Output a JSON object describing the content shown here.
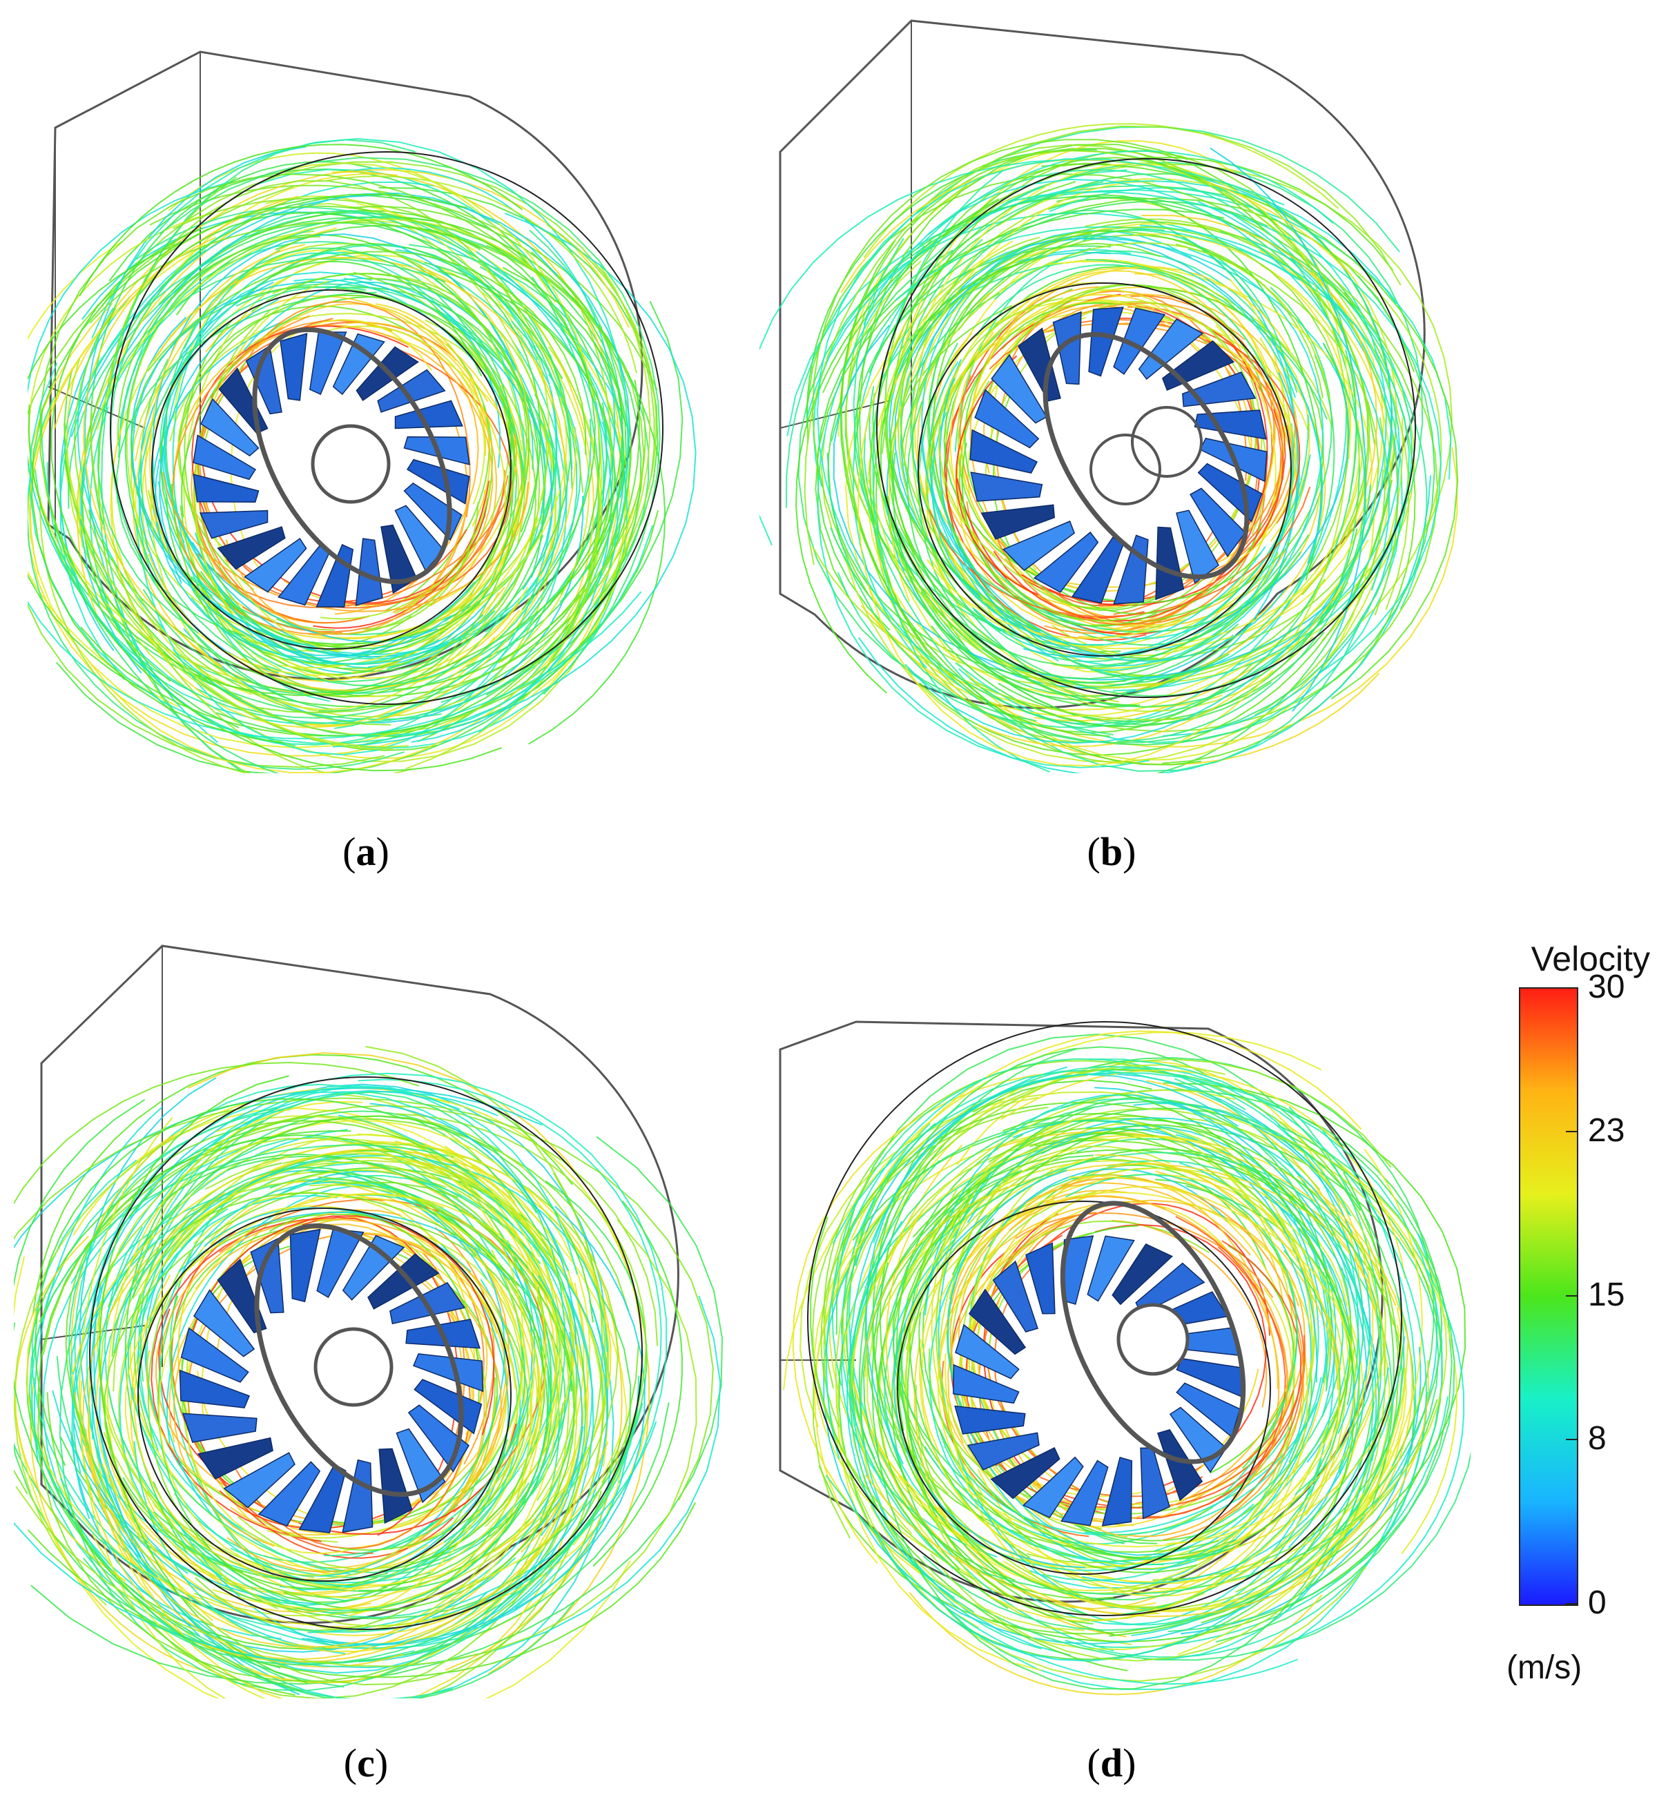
{
  "panels": [
    {
      "id": "a",
      "caption": "a"
    },
    {
      "id": "b",
      "caption": "b"
    },
    {
      "id": "c",
      "caption": "c"
    },
    {
      "id": "d",
      "caption": "d"
    }
  ],
  "legend": {
    "title": "Velocity",
    "unit": "(m/s)",
    "ticks": [
      "30",
      "23",
      "15",
      "8",
      "0"
    ],
    "tick_values": [
      30,
      23,
      15,
      8,
      0
    ],
    "range": [
      0,
      30
    ],
    "colormap": [
      "#1a1aff",
      "#19b4ff",
      "#18f0c8",
      "#4be61c",
      "#e6f01c",
      "#ffb414",
      "#ff1e14"
    ]
  }
}
